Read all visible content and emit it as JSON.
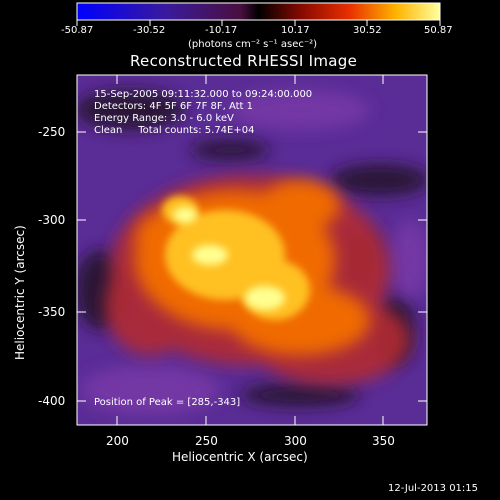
{
  "title": "Reconstructed RHESSI Image",
  "colorbar": {
    "ticks": [
      "-50.87",
      "-30.52",
      "-10.17",
      "10.17",
      "30.52",
      "50.87"
    ],
    "unit_label": "(photons cm⁻² s⁻¹ asec⁻²)",
    "range": [
      -50.87,
      50.87
    ]
  },
  "axes": {
    "xlabel": "Heliocentric X (arcsec)",
    "ylabel": "Heliocentric Y (arcsec)",
    "xticks": [
      "200",
      "250",
      "300",
      "350"
    ],
    "yticks": [
      "-250",
      "-300",
      "-350",
      "-400"
    ]
  },
  "annotations": {
    "time": "15-Sep-2005 09:11:32.000 to 09:24:00.000",
    "detectors": "Detectors: 4F 5F 6F 7F 8F, Att 1",
    "energy": "Energy Range: 3.0 - 6.0 keV",
    "method_counts": "Clean     Total counts: 5.74E+04",
    "peak": "Position of Peak = [285,-343]"
  },
  "footer": "12-Jul-2013 01:15",
  "colors": {
    "background": "#000000",
    "axis": "#ffffff",
    "image_low": "#5a2c96",
    "image_high": "#ffff90"
  }
}
